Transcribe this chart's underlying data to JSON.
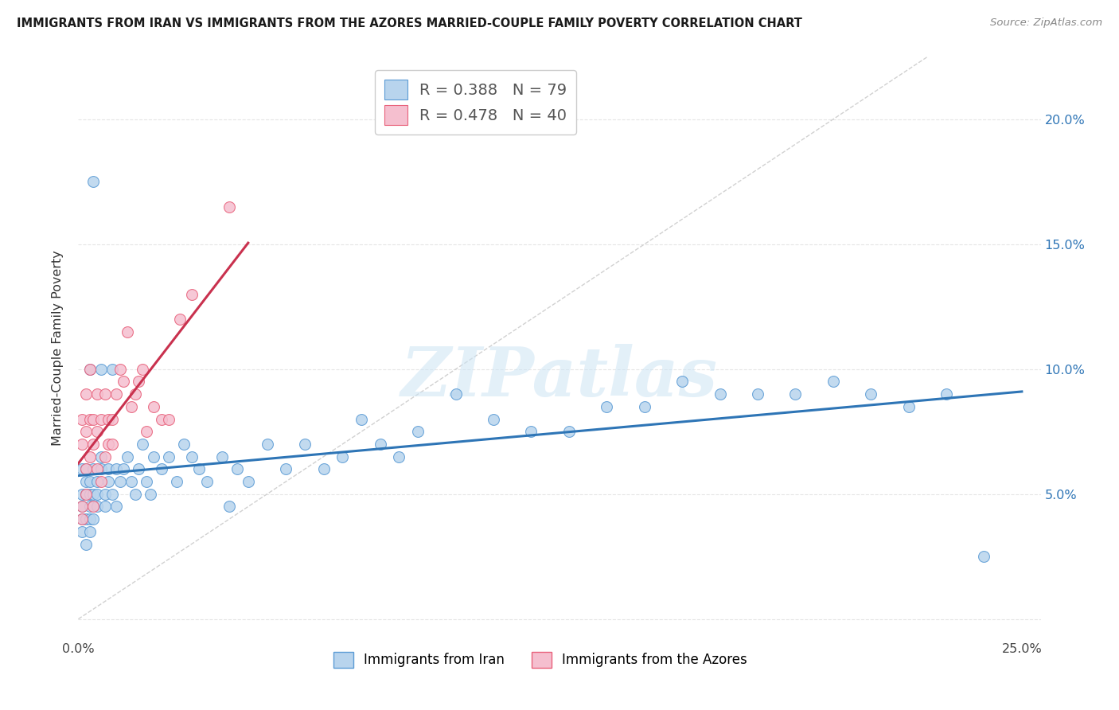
{
  "title": "IMMIGRANTS FROM IRAN VS IMMIGRANTS FROM THE AZORES MARRIED-COUPLE FAMILY POVERTY CORRELATION CHART",
  "source": "Source: ZipAtlas.com",
  "ylabel": "Married-Couple Family Poverty",
  "xlim": [
    0.0,
    0.255
  ],
  "ylim": [
    -0.008,
    0.225
  ],
  "iran_R": 0.388,
  "iran_N": 79,
  "azores_R": 0.478,
  "azores_N": 40,
  "iran_color": "#b8d4ed",
  "azores_color": "#f5bfcf",
  "iran_edge_color": "#5b9bd5",
  "azores_edge_color": "#e8607a",
  "iran_line_color": "#2e75b6",
  "azores_line_color": "#c9314e",
  "diag_color": "#cccccc",
  "grid_color": "#e5e5e5",
  "right_axis_color": "#2e75b6",
  "iran_x": [
    0.001,
    0.001,
    0.001,
    0.001,
    0.001,
    0.002,
    0.002,
    0.002,
    0.002,
    0.002,
    0.003,
    0.003,
    0.003,
    0.003,
    0.003,
    0.004,
    0.004,
    0.004,
    0.005,
    0.005,
    0.005,
    0.006,
    0.006,
    0.007,
    0.007,
    0.008,
    0.008,
    0.009,
    0.01,
    0.01,
    0.011,
    0.012,
    0.013,
    0.014,
    0.015,
    0.016,
    0.017,
    0.018,
    0.019,
    0.02,
    0.022,
    0.024,
    0.026,
    0.028,
    0.03,
    0.032,
    0.034,
    0.038,
    0.04,
    0.042,
    0.045,
    0.05,
    0.055,
    0.06,
    0.065,
    0.07,
    0.075,
    0.08,
    0.085,
    0.09,
    0.1,
    0.11,
    0.12,
    0.13,
    0.14,
    0.15,
    0.16,
    0.17,
    0.18,
    0.19,
    0.2,
    0.21,
    0.22,
    0.23,
    0.24,
    0.006,
    0.004,
    0.003,
    0.009
  ],
  "iran_y": [
    0.04,
    0.05,
    0.035,
    0.045,
    0.06,
    0.04,
    0.05,
    0.055,
    0.03,
    0.06,
    0.04,
    0.05,
    0.055,
    0.045,
    0.035,
    0.05,
    0.06,
    0.04,
    0.05,
    0.045,
    0.055,
    0.06,
    0.065,
    0.05,
    0.045,
    0.06,
    0.055,
    0.05,
    0.06,
    0.045,
    0.055,
    0.06,
    0.065,
    0.055,
    0.05,
    0.06,
    0.07,
    0.055,
    0.05,
    0.065,
    0.06,
    0.065,
    0.055,
    0.07,
    0.065,
    0.06,
    0.055,
    0.065,
    0.045,
    0.06,
    0.055,
    0.07,
    0.06,
    0.07,
    0.06,
    0.065,
    0.08,
    0.07,
    0.065,
    0.075,
    0.09,
    0.08,
    0.075,
    0.075,
    0.085,
    0.085,
    0.095,
    0.09,
    0.09,
    0.09,
    0.095,
    0.09,
    0.085,
    0.09,
    0.025,
    0.1,
    0.175,
    0.1,
    0.1
  ],
  "azores_x": [
    0.001,
    0.001,
    0.001,
    0.001,
    0.002,
    0.002,
    0.002,
    0.002,
    0.003,
    0.003,
    0.003,
    0.004,
    0.004,
    0.004,
    0.005,
    0.005,
    0.005,
    0.006,
    0.006,
    0.007,
    0.007,
    0.008,
    0.008,
    0.009,
    0.009,
    0.01,
    0.011,
    0.012,
    0.013,
    0.014,
    0.015,
    0.016,
    0.017,
    0.018,
    0.02,
    0.022,
    0.024,
    0.027,
    0.03,
    0.04
  ],
  "azores_y": [
    0.04,
    0.07,
    0.08,
    0.045,
    0.05,
    0.06,
    0.075,
    0.09,
    0.065,
    0.08,
    0.1,
    0.045,
    0.07,
    0.08,
    0.06,
    0.075,
    0.09,
    0.055,
    0.08,
    0.065,
    0.09,
    0.07,
    0.08,
    0.07,
    0.08,
    0.09,
    0.1,
    0.095,
    0.115,
    0.085,
    0.09,
    0.095,
    0.1,
    0.075,
    0.085,
    0.08,
    0.08,
    0.12,
    0.13,
    0.165
  ],
  "legend_iran": "R = 0.388   N = 79",
  "legend_azores": "R = 0.478   N = 40",
  "bottom_iran": "Immigrants from Iran",
  "bottom_azores": "Immigrants from the Azores",
  "watermark": "ZIPatlas",
  "xtick_pos": [
    0.0,
    0.05,
    0.1,
    0.15,
    0.2,
    0.25
  ],
  "xtick_labels": [
    "0.0%",
    "",
    "",
    "",
    "",
    "25.0%"
  ],
  "ytick_pos": [
    0.0,
    0.05,
    0.1,
    0.15,
    0.2
  ],
  "ytick_labels": [
    "",
    "5.0%",
    "10.0%",
    "15.0%",
    "20.0%"
  ]
}
